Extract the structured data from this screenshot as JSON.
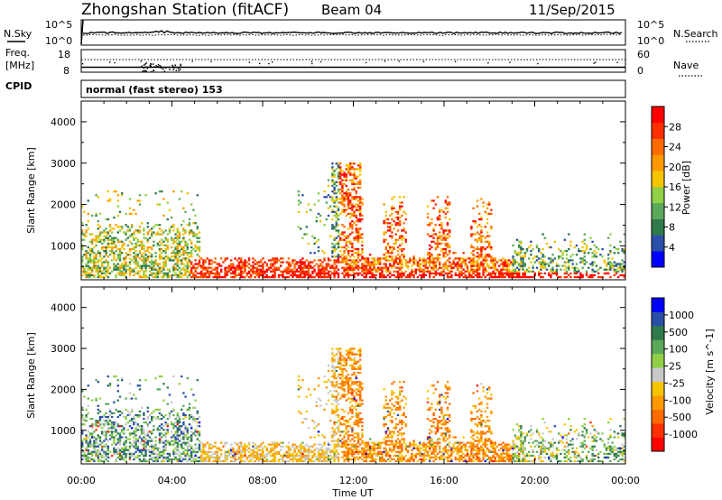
{
  "header": {
    "station": "Zhongshan Station (fitACF)",
    "beam": "Beam 04",
    "date": "11/Sep/2015"
  },
  "top_panel": {
    "left_label": "N.Sky",
    "right_label": "N.Search",
    "y_top_left": "10^5",
    "y_bottom_left": "10^0",
    "y_top_right": "10^5",
    "y_bottom_right": "10^0"
  },
  "freq_panel": {
    "left_label_line1": "Freq.",
    "left_label_line2": "[MHz]",
    "cpid_label": "CPID",
    "right_label": "Nave",
    "y_top_left": "18",
    "y_bottom_left": "8",
    "y_top_right": "60",
    "y_bottom_right": "0"
  },
  "cpid_panel": {
    "text": "normal (fast stereo) 153"
  },
  "colors": {
    "scale": [
      "#0000ff",
      "#2b4fa8",
      "#2f7a4a",
      "#5aa85a",
      "#8fd046",
      "#f5c400",
      "#ff9900",
      "#ff6a00",
      "#ff3000",
      "#ff0000"
    ],
    "velocity_scale": [
      "#ff0000",
      "#ff3000",
      "#ff6a00",
      "#ff9900",
      "#f5c400",
      "#c8c8c8",
      "#8fd046",
      "#5aa85a",
      "#2f7a4a",
      "#2b4fa8",
      "#0000ff"
    ]
  },
  "power_colorbar": {
    "label": "Power [dB]",
    "ticks": [
      "4",
      "8",
      "12",
      "16",
      "20",
      "24",
      "28"
    ]
  },
  "velocity_colorbar": {
    "label": "Velocity [m s^-1]",
    "ticks": [
      "-1000",
      "-500",
      "-100",
      "-25",
      "25",
      "100",
      "500",
      "1000"
    ]
  },
  "chart_data": [
    {
      "type": "heatmap",
      "name_on_chart": "Power [dB]",
      "ylabel": "Slant Range [km]",
      "x_ticks": [
        "00:00",
        "04:00",
        "08:00",
        "12:00",
        "16:00",
        "20:00",
        "00:00"
      ],
      "y_ticks": [
        "1000",
        "2000",
        "3000",
        "4000"
      ],
      "ylim": [
        180,
        4500
      ],
      "color_range": [
        0,
        32
      ],
      "pattern_note_values": [
        {
          "x_hours_range": [
            0,
            5
          ],
          "slant_range_km": [
            200,
            1500
          ],
          "power_db_typical": 14
        },
        {
          "x_hours_range": [
            5,
            11
          ],
          "slant_range_km": [
            200,
            700
          ],
          "power_db_typical": 24
        },
        {
          "x_hours_range": [
            11,
            19
          ],
          "slant_range_km": [
            300,
            2200
          ],
          "power_db_typical": 22
        },
        {
          "x_hours_range": [
            19,
            24
          ],
          "slant_range_km": [
            200,
            1200
          ],
          "power_db_typical": 12
        }
      ]
    },
    {
      "type": "heatmap",
      "name_on_chart": "Velocity [m s^-1]",
      "ylabel": "Slant Range [km]",
      "xlabel": "Time UT",
      "x_ticks": [
        "00:00",
        "04:00",
        "08:00",
        "12:00",
        "16:00",
        "20:00",
        "00:00"
      ],
      "y_ticks": [
        "1000",
        "2000",
        "3000",
        "4000"
      ],
      "ylim": [
        180,
        4500
      ],
      "color_range": [
        -1000,
        1000
      ],
      "pattern_note_values": [
        {
          "x_hours_range": [
            0,
            5
          ],
          "slant_range_km": [
            200,
            1500
          ],
          "velocity_typical": 100
        },
        {
          "x_hours_range": [
            5,
            11
          ],
          "slant_range_km": [
            200,
            700
          ],
          "velocity_typical": -100
        },
        {
          "x_hours_range": [
            11,
            19
          ],
          "slant_range_km": [
            300,
            2200
          ],
          "velocity_typical": -300
        },
        {
          "x_hours_range": [
            19,
            24
          ],
          "slant_range_km": [
            200,
            1200
          ],
          "velocity_typical": 50
        }
      ]
    }
  ],
  "x_axis": {
    "label": "Time UT",
    "ticks": [
      "00:00",
      "04:00",
      "08:00",
      "12:00",
      "16:00",
      "20:00",
      "00:00"
    ]
  }
}
